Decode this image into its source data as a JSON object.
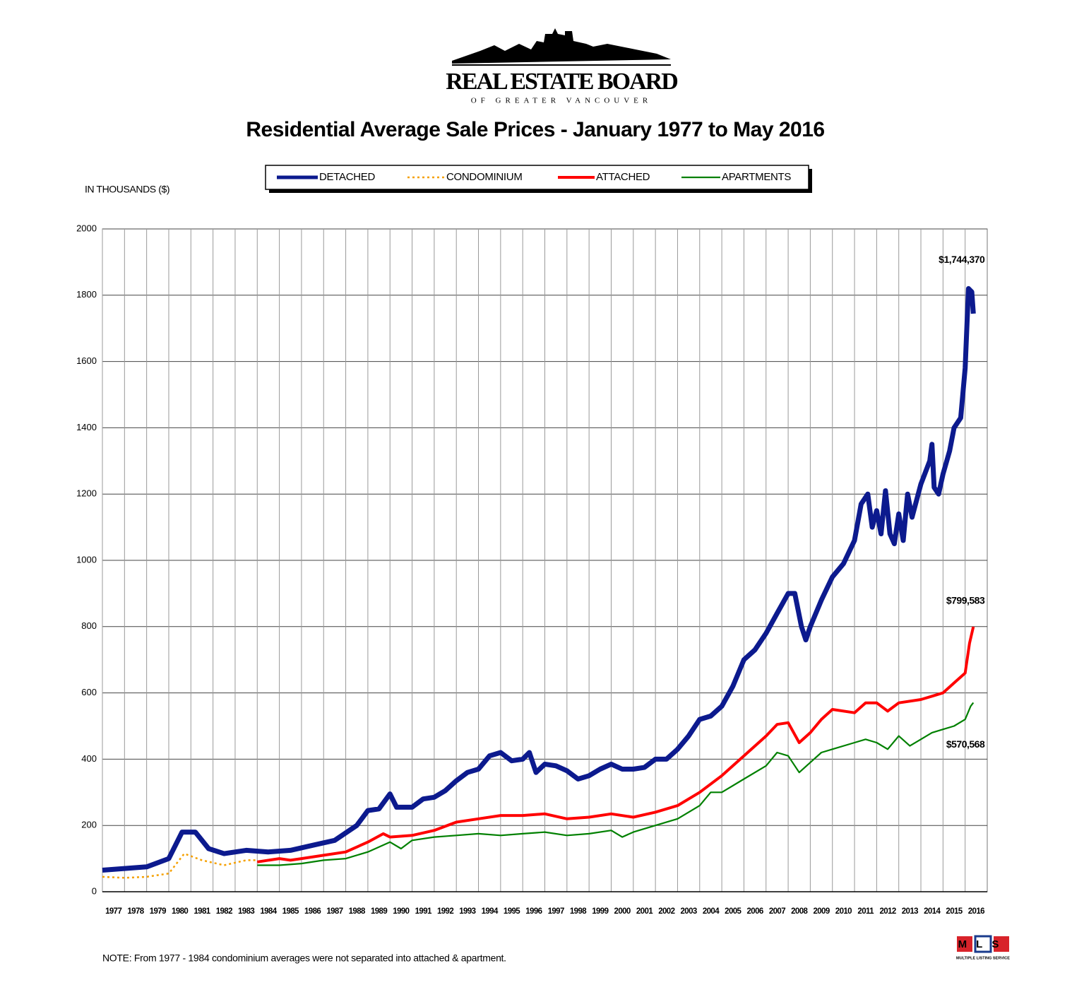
{
  "header": {
    "org": "REAL ESTATE BOARD",
    "org_sub": "OF GREATER VANCOUVER"
  },
  "chart_data": {
    "type": "line",
    "title": "Residential Average Sale Prices  -  January 1977 to May 2016",
    "y_label": "IN THOUSANDS ($)",
    "xlim": [
      1977,
      2017
    ],
    "xticks": [
      1977,
      1978,
      1979,
      1980,
      1981,
      1982,
      1983,
      1984,
      1985,
      1986,
      1987,
      1988,
      1989,
      1990,
      1991,
      1992,
      1993,
      1994,
      1995,
      1996,
      1997,
      1998,
      1999,
      2000,
      2001,
      2002,
      2003,
      2004,
      2005,
      2006,
      2007,
      2008,
      2009,
      2010,
      2011,
      2012,
      2013,
      2014,
      2015,
      2016
    ],
    "ylim": [
      0,
      2000
    ],
    "yticks": [
      0,
      200,
      400,
      600,
      800,
      1000,
      1200,
      1400,
      1600,
      1800,
      2000
    ],
    "grid": true,
    "legend": "top",
    "series": [
      {
        "name": "DETACHED",
        "color": "#0c1a8e",
        "style": "solid",
        "x": [
          1977.0,
          1979.0,
          1980.0,
          1980.6,
          1981.2,
          1981.8,
          1982.5,
          1983.5,
          1984.5,
          1985.5,
          1986.5,
          1987.5,
          1988.5,
          1989.0,
          1989.5,
          1990.0,
          1990.3,
          1991.0,
          1991.5,
          1992.0,
          1992.5,
          1993.0,
          1993.5,
          1994.0,
          1994.5,
          1995.0,
          1995.5,
          1996.0,
          1996.3,
          1996.6,
          1997.0,
          1997.5,
          1998.0,
          1998.5,
          1999.0,
          1999.5,
          2000.0,
          2000.5,
          2001.0,
          2001.5,
          2002.0,
          2002.5,
          2003.0,
          2003.5,
          2004.0,
          2004.5,
          2005.0,
          2005.5,
          2006.0,
          2006.5,
          2007.0,
          2007.5,
          2008.0,
          2008.3,
          2008.6,
          2008.8,
          2009.0,
          2009.5,
          2010.0,
          2010.5,
          2011.0,
          2011.3,
          2011.6,
          2011.8,
          2012.0,
          2012.2,
          2012.4,
          2012.6,
          2012.8,
          2013.0,
          2013.2,
          2013.4,
          2013.6,
          2014.0,
          2014.4,
          2014.5,
          2014.6,
          2014.8,
          2015.0,
          2015.3,
          2015.5,
          2015.8,
          2016.0,
          2016.15,
          2016.3,
          2016.37
        ],
        "values": [
          65,
          75,
          100,
          180,
          180,
          130,
          115,
          125,
          120,
          125,
          140,
          155,
          200,
          245,
          250,
          295,
          255,
          255,
          280,
          285,
          305,
          335,
          360,
          370,
          410,
          420,
          395,
          400,
          420,
          360,
          385,
          380,
          365,
          340,
          350,
          370,
          385,
          370,
          370,
          375,
          400,
          400,
          430,
          470,
          520,
          530,
          560,
          620,
          700,
          730,
          780,
          840,
          900,
          900,
          800,
          760,
          800,
          880,
          950,
          990,
          1060,
          1170,
          1200,
          1100,
          1150,
          1080,
          1210,
          1080,
          1050,
          1140,
          1060,
          1200,
          1130,
          1230,
          1300,
          1350,
          1220,
          1200,
          1260,
          1330,
          1400,
          1430,
          1580,
          1820,
          1810,
          1744.37
        ],
        "end_label": "$1,744,370"
      },
      {
        "name": "CONDOMINIUM",
        "color": "#f5a000",
        "style": "dotted",
        "x": [
          1977.0,
          1978.0,
          1979.0,
          1980.0,
          1980.7,
          1981.5,
          1982.5,
          1983.5,
          1984.0
        ],
        "values": [
          45,
          42,
          45,
          55,
          115,
          95,
          80,
          95,
          95
        ]
      },
      {
        "name": "ATTACHED",
        "color": "#ff0000",
        "style": "solid",
        "x": [
          1984.0,
          1985.0,
          1985.5,
          1986.0,
          1987.0,
          1988.0,
          1989.0,
          1989.7,
          1990.0,
          1991.0,
          1992.0,
          1993.0,
          1994.0,
          1995.0,
          1996.0,
          1997.0,
          1998.0,
          1999.0,
          2000.0,
          2001.0,
          2002.0,
          2003.0,
          2004.0,
          2005.0,
          2006.0,
          2007.0,
          2007.5,
          2008.0,
          2008.5,
          2009.0,
          2009.5,
          2010.0,
          2011.0,
          2011.5,
          2012.0,
          2012.5,
          2013.0,
          2014.0,
          2014.5,
          2015.0,
          2015.5,
          2016.0,
          2016.2,
          2016.37
        ],
        "values": [
          90,
          100,
          95,
          100,
          110,
          120,
          150,
          175,
          165,
          170,
          185,
          210,
          220,
          230,
          230,
          235,
          220,
          225,
          235,
          225,
          240,
          260,
          300,
          350,
          410,
          470,
          505,
          510,
          450,
          480,
          520,
          550,
          540,
          570,
          570,
          545,
          570,
          580,
          590,
          600,
          630,
          660,
          750,
          799.583
        ],
        "end_label": "$799,583"
      },
      {
        "name": "APARTMENTS",
        "color": "#008000",
        "style": "solid",
        "x": [
          1984.0,
          1985.0,
          1986.0,
          1987.0,
          1988.0,
          1989.0,
          1990.0,
          1990.5,
          1991.0,
          1992.0,
          1993.0,
          1994.0,
          1995.0,
          1996.0,
          1997.0,
          1998.0,
          1999.0,
          2000.0,
          2000.5,
          2001.0,
          2002.0,
          2003.0,
          2004.0,
          2004.5,
          2005.0,
          2006.0,
          2007.0,
          2007.5,
          2008.0,
          2008.5,
          2009.0,
          2009.5,
          2010.0,
          2011.0,
          2011.5,
          2012.0,
          2012.5,
          2013.0,
          2013.5,
          2014.0,
          2014.5,
          2015.0,
          2015.5,
          2016.0,
          2016.25,
          2016.37
        ],
        "values": [
          80,
          80,
          85,
          95,
          100,
          120,
          150,
          130,
          155,
          165,
          170,
          175,
          170,
          175,
          180,
          170,
          175,
          185,
          165,
          180,
          200,
          220,
          260,
          300,
          300,
          340,
          380,
          420,
          410,
          360,
          390,
          420,
          430,
          450,
          460,
          450,
          430,
          470,
          440,
          460,
          480,
          490,
          500,
          520,
          560,
          570.568
        ],
        "end_label": "$570,568"
      }
    ],
    "note": "NOTE:  From 1977 - 1984 condominium averages were not separated into attached & apartment.",
    "badge": "MLS",
    "badge_sub": "MULTIPLE LISTING SERVICE"
  }
}
